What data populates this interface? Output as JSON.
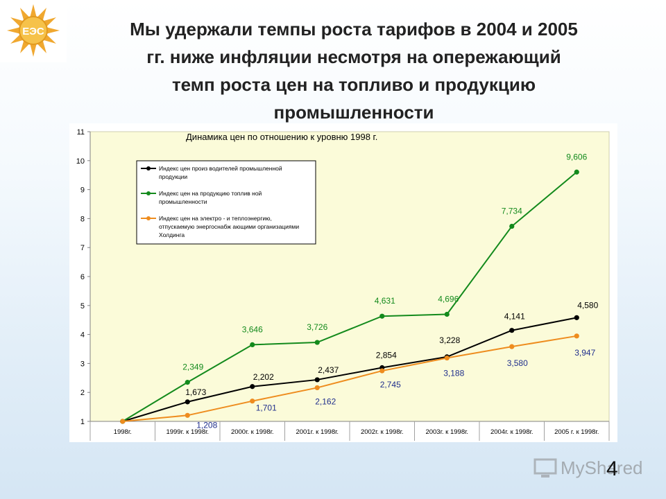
{
  "slide": {
    "title_lines": [
      "Мы удержали темпы роста тарифов в 2004 и 2005",
      "гг. ниже инфляции несмотря на опережающий",
      "темп роста цен на топливо и продукцию",
      "промышленности"
    ],
    "page_number": "4",
    "watermark_text": "MyShared",
    "logo_text": "ЕЭС"
  },
  "chart_data": {
    "type": "line",
    "title": "Динамика цен по отношению к уровню 1998 г.",
    "categories": [
      "1998г.",
      "1999г. к 1998г.",
      "2000г. к 1998г.",
      "2001г. к 1998г.",
      "2002г. к 1998г.",
      "2003г. к 1998г.",
      "2004г. к 1998г.",
      "2005 г. к 1998г."
    ],
    "ylim": [
      1,
      11
    ],
    "yticks": [
      1,
      2,
      3,
      4,
      5,
      6,
      7,
      8,
      9,
      10,
      11
    ],
    "grid": false,
    "legend_position": "top-left",
    "series": [
      {
        "name_lines": [
          "Индекс цен произ водителей промышленной",
          "продукции"
        ],
        "color": "#000000",
        "values": [
          1,
          1.673,
          2.202,
          2.437,
          2.854,
          3.228,
          4.141,
          4.58
        ],
        "labels": [
          "",
          "1,673",
          "2,202",
          "2,437",
          "2,854",
          "3,228",
          "4,141",
          "4,580"
        ],
        "label_color": "#000000"
      },
      {
        "name_lines": [
          "Индекс цен на продукцию топлив ной",
          "промышленности"
        ],
        "color": "#138a1c",
        "values": [
          1,
          2.349,
          3.646,
          3.726,
          4.631,
          4.696,
          7.734,
          9.606
        ],
        "labels": [
          "",
          "2,349",
          "3,646",
          "3,726",
          "4,631",
          "4,696",
          "7,734",
          "9,606"
        ],
        "label_color": "#138a1c"
      },
      {
        "name_lines": [
          "Индекс цен на электро - и теплоэнергию,",
          "отпускаемую энергоснабж ающими организациями",
          "Холдинга"
        ],
        "color": "#ee8c1e",
        "values": [
          1,
          1.208,
          1.701,
          2.162,
          2.745,
          3.188,
          3.58,
          3.947
        ],
        "labels": [
          "",
          "1,208",
          "1,701",
          "2,162",
          "2,745",
          "3,188",
          "3,580",
          "3,947"
        ],
        "label_color": "#1f2e8c"
      }
    ]
  },
  "colors": {
    "plot_background": "#fbfbd9",
    "text": "#222222"
  }
}
